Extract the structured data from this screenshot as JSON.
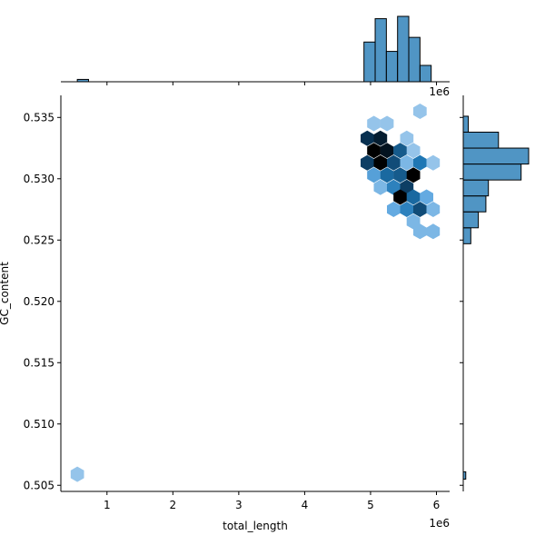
{
  "chart_data": {
    "type": "hexbin",
    "xlabel": "total_length",
    "ylabel": "GC_content",
    "x_offset_label": "1e6",
    "x_ticks": [
      1,
      2,
      3,
      4,
      5,
      6
    ],
    "x_tick_labels": [
      "1",
      "2",
      "3",
      "4",
      "5",
      "6"
    ],
    "y_ticks": [
      0.505,
      0.51,
      0.515,
      0.52,
      0.525,
      0.53,
      0.535
    ],
    "y_tick_labels": [
      "0.505",
      "0.510",
      "0.515",
      "0.520",
      "0.525",
      "0.530",
      "0.535"
    ],
    "xlim": [
      0.3,
      6.2
    ],
    "ylim": [
      0.5045,
      0.5368
    ],
    "hex_color": "#1f77b4",
    "hexbins": [
      {
        "x": 5.05,
        "y": 0.5345,
        "density": 0.15
      },
      {
        "x": 5.25,
        "y": 0.5345,
        "density": 0.15
      },
      {
        "x": 5.75,
        "y": 0.5355,
        "density": 0.15
      },
      {
        "x": 4.95,
        "y": 0.5333,
        "density": 0.75
      },
      {
        "x": 5.15,
        "y": 0.5333,
        "density": 0.85
      },
      {
        "x": 5.55,
        "y": 0.5333,
        "density": 0.15
      },
      {
        "x": 5.05,
        "y": 0.5323,
        "density": 1.0
      },
      {
        "x": 5.25,
        "y": 0.5323,
        "density": 0.9
      },
      {
        "x": 5.45,
        "y": 0.5323,
        "density": 0.6
      },
      {
        "x": 5.65,
        "y": 0.5323,
        "density": 0.15
      },
      {
        "x": 4.95,
        "y": 0.5313,
        "density": 0.7
      },
      {
        "x": 5.15,
        "y": 0.5313,
        "density": 1.0
      },
      {
        "x": 5.35,
        "y": 0.5313,
        "density": 0.65
      },
      {
        "x": 5.55,
        "y": 0.5313,
        "density": 0.2
      },
      {
        "x": 5.75,
        "y": 0.5313,
        "density": 0.5
      },
      {
        "x": 5.95,
        "y": 0.5313,
        "density": 0.15
      },
      {
        "x": 5.05,
        "y": 0.5303,
        "density": 0.3
      },
      {
        "x": 5.25,
        "y": 0.5303,
        "density": 0.55
      },
      {
        "x": 5.45,
        "y": 0.5303,
        "density": 0.6
      },
      {
        "x": 5.65,
        "y": 0.5303,
        "density": 1.0
      },
      {
        "x": 5.15,
        "y": 0.5293,
        "density": 0.2
      },
      {
        "x": 5.35,
        "y": 0.5293,
        "density": 0.45
      },
      {
        "x": 5.55,
        "y": 0.5293,
        "density": 0.7
      },
      {
        "x": 5.45,
        "y": 0.5285,
        "density": 1.0
      },
      {
        "x": 5.65,
        "y": 0.5285,
        "density": 0.55
      },
      {
        "x": 5.85,
        "y": 0.5285,
        "density": 0.25
      },
      {
        "x": 5.35,
        "y": 0.5275,
        "density": 0.25
      },
      {
        "x": 5.55,
        "y": 0.5275,
        "density": 0.45
      },
      {
        "x": 5.75,
        "y": 0.5275,
        "density": 0.65
      },
      {
        "x": 5.95,
        "y": 0.5275,
        "density": 0.2
      },
      {
        "x": 5.65,
        "y": 0.5265,
        "density": 0.2
      },
      {
        "x": 5.75,
        "y": 0.5257,
        "density": 0.2
      },
      {
        "x": 5.95,
        "y": 0.5257,
        "density": 0.2
      },
      {
        "x": 0.55,
        "y": 0.5059,
        "density": 0.15
      }
    ],
    "x_histogram": {
      "color": "#1f77b4",
      "bins": [
        {
          "x0": 0.55,
          "x1": 0.72,
          "count": 1
        },
        {
          "x0": 4.9,
          "x1": 5.07,
          "count": 17
        },
        {
          "x0": 5.07,
          "x1": 5.24,
          "count": 27
        },
        {
          "x0": 5.24,
          "x1": 5.41,
          "count": 13
        },
        {
          "x0": 5.41,
          "x1": 5.58,
          "count": 28
        },
        {
          "x0": 5.58,
          "x1": 5.75,
          "count": 19
        },
        {
          "x0": 5.75,
          "x1": 5.92,
          "count": 7
        }
      ]
    },
    "y_histogram": {
      "color": "#1f77b4",
      "bins": [
        {
          "y0": 0.5055,
          "y1": 0.5061,
          "count": 1
        },
        {
          "y0": 0.5247,
          "y1": 0.526,
          "count": 3
        },
        {
          "y0": 0.526,
          "y1": 0.5273,
          "count": 6
        },
        {
          "y0": 0.5273,
          "y1": 0.5286,
          "count": 9
        },
        {
          "y0": 0.5286,
          "y1": 0.5299,
          "count": 10
        },
        {
          "y0": 0.5299,
          "y1": 0.5312,
          "count": 23
        },
        {
          "y0": 0.5312,
          "y1": 0.5325,
          "count": 26
        },
        {
          "y0": 0.5325,
          "y1": 0.5338,
          "count": 14
        },
        {
          "y0": 0.5338,
          "y1": 0.5351,
          "count": 2
        }
      ]
    }
  }
}
